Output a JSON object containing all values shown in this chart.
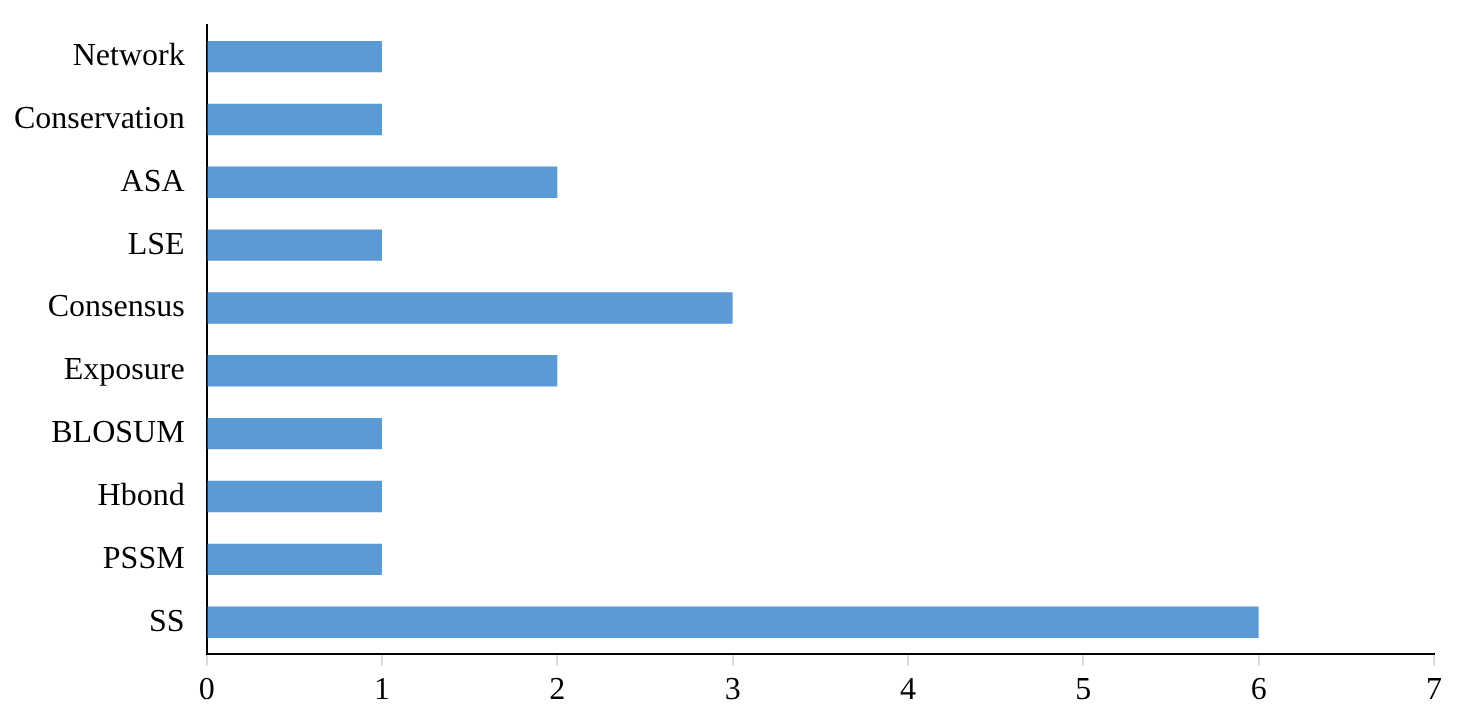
{
  "chart_data": {
    "type": "bar",
    "orientation": "horizontal",
    "categories": [
      "Network",
      "Conservation",
      "ASA",
      "LSE",
      "Consensus",
      "Exposure",
      "BLOSUM",
      "Hbond",
      "PSSM",
      "SS"
    ],
    "values": [
      1,
      1,
      2,
      1,
      3,
      2,
      1,
      1,
      1,
      6
    ],
    "color": "#5b9bd5",
    "xlim": [
      0,
      7
    ],
    "xticks": [
      0,
      1,
      2,
      3,
      4,
      5,
      6,
      7
    ],
    "grid": false,
    "legend": false
  }
}
